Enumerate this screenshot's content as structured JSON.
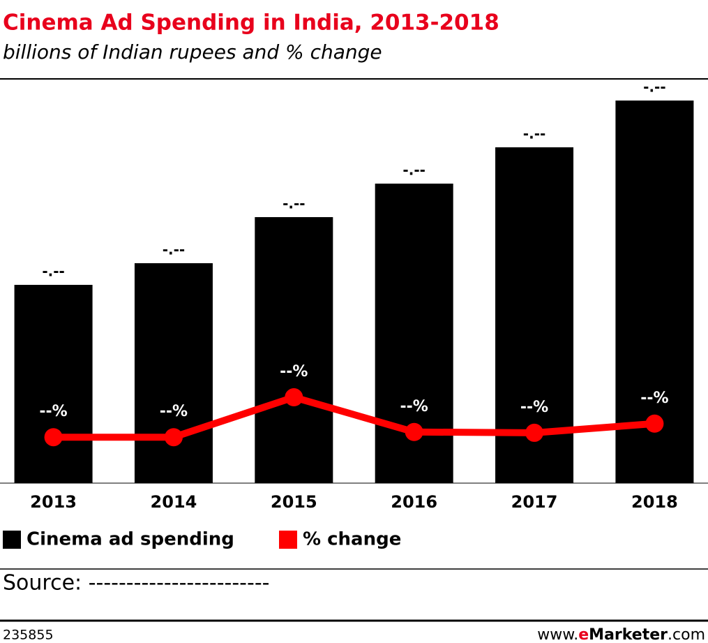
{
  "chart_data": {
    "type": "bar-line",
    "title": "Cinema Ad Spending in India, 2013-2018",
    "subtitle": "billions of Indian rupees and % change",
    "categories": [
      "2013",
      "2014",
      "2015",
      "2016",
      "2017",
      "2018"
    ],
    "ylim": [
      0,
      5.72
    ],
    "y2lim": [
      0,
      100
    ],
    "series": [
      {
        "name": "Cinema ad spending",
        "type": "bar",
        "color": "#000000",
        "values": [
          2.84,
          3.15,
          3.81,
          4.29,
          4.81,
          5.48
        ],
        "value_labels": [
          "-.--",
          "-.--",
          "-.--",
          "-.--",
          "-.--",
          "-.--"
        ]
      },
      {
        "name": "% change",
        "type": "line",
        "axis": "y2",
        "color": "#ff0000",
        "values": [
          11.5,
          11.5,
          21.5,
          12.8,
          12.6,
          14.9
        ],
        "value_labels": [
          "--%",
          "--%",
          "--%",
          "--%",
          "--%",
          "--%"
        ]
      }
    ],
    "source": "Source: ------------------------",
    "chart_id": "235855",
    "brand": [
      "www.",
      "e",
      "Marketer",
      ".com"
    ]
  }
}
